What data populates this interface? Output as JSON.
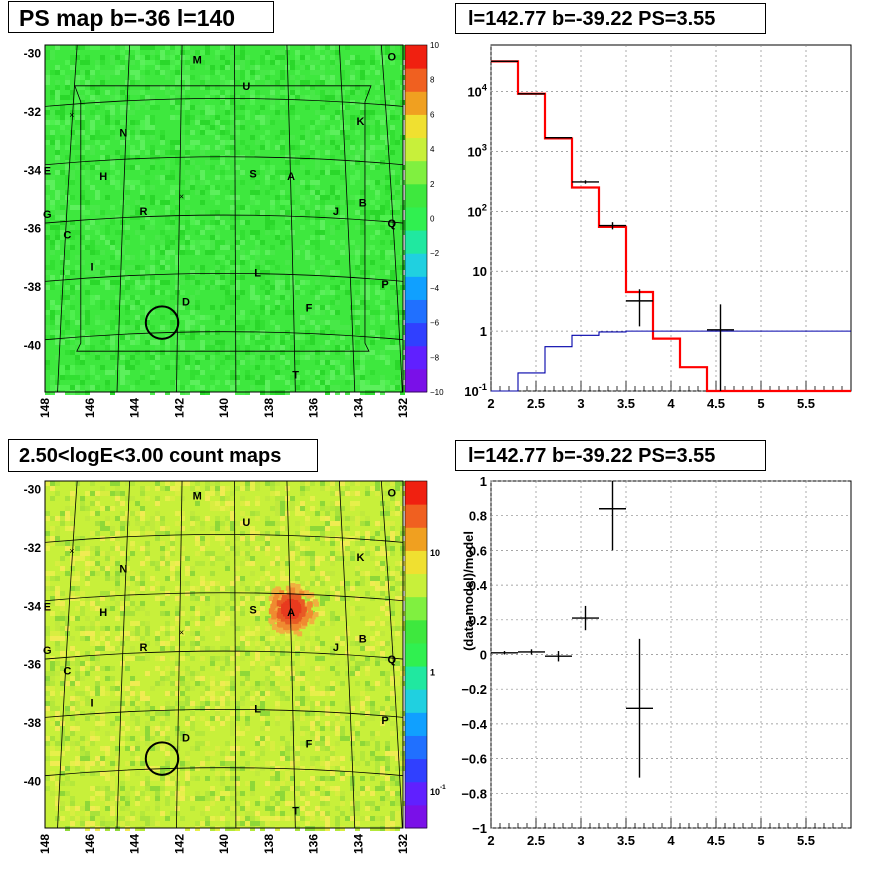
{
  "panels": {
    "ps_map_title": "PS map b=-36 l=140",
    "spectrum_title": "l=142.77 b=-39.22 PS=3.55",
    "count_map_title": "2.50<logE<3.00 count maps",
    "residual_title": "l=142.77 b=-39.22 PS=3.55"
  },
  "colors": {
    "ps_map_background": "#3ee83e",
    "count_map_background": "#c8f03a",
    "hot_spot": "#e83a1e",
    "grid_lines": "#000000",
    "model_red": "#ff0000",
    "model_blue": "#0000aa",
    "data_black": "#000000"
  },
  "chart_data": [
    {
      "type": "heatmap",
      "title": "PS map b=-36 l=140",
      "x_ticks": [
        "148",
        "146",
        "144",
        "142",
        "140",
        "138",
        "136",
        "134",
        "132"
      ],
      "y_ticks": [
        "-30",
        "-32",
        "-34",
        "-36",
        "-38",
        "-40"
      ],
      "xlim": [
        148,
        132
      ],
      "ylim": [
        -41.6,
        -29.7
      ],
      "colorbar_ticks": [
        "10",
        "8",
        "6",
        "4",
        "2",
        "0",
        "−2",
        "−4",
        "−6",
        "−8",
        "−10"
      ],
      "colorbar_range": [
        -10,
        10
      ],
      "source_labels": [
        {
          "text": "M",
          "l": 141.2,
          "b": -30.2
        },
        {
          "text": "U",
          "l": 139.0,
          "b": -31.1
        },
        {
          "text": "O",
          "l": 132.5,
          "b": -30.1
        },
        {
          "text": "K",
          "l": 133.9,
          "b": -32.3
        },
        {
          "text": "N",
          "l": 144.5,
          "b": -32.7
        },
        {
          "text": "E",
          "l": 147.9,
          "b": -34.0
        },
        {
          "text": "H",
          "l": 145.4,
          "b": -34.2
        },
        {
          "text": "S",
          "l": 138.7,
          "b": -34.1
        },
        {
          "text": "A",
          "l": 137.0,
          "b": -34.2
        },
        {
          "text": "B",
          "l": 133.8,
          "b": -35.1
        },
        {
          "text": "G",
          "l": 147.9,
          "b": -35.5
        },
        {
          "text": "R",
          "l": 143.6,
          "b": -35.4
        },
        {
          "text": "J",
          "l": 135.0,
          "b": -35.4
        },
        {
          "text": "Q",
          "l": 132.5,
          "b": -35.8
        },
        {
          "text": "C",
          "l": 147.0,
          "b": -36.2
        },
        {
          "text": "I",
          "l": 145.9,
          "b": -37.3
        },
        {
          "text": "L",
          "l": 138.5,
          "b": -37.5
        },
        {
          "text": "P",
          "l": 132.8,
          "b": -37.9
        },
        {
          "text": "D",
          "l": 141.7,
          "b": -38.5
        },
        {
          "text": "F",
          "l": 136.2,
          "b": -38.7
        },
        {
          "text": "T",
          "l": 136.8,
          "b": -41.0
        }
      ],
      "circle": {
        "l": 142.77,
        "b": -39.22,
        "radius_deg": 0.5
      },
      "cross_markers": [
        {
          "l": 146.8,
          "b": -32.1
        },
        {
          "l": 141.9,
          "b": -34.9
        }
      ]
    },
    {
      "type": "line",
      "title": "l=142.77 b=-39.22 PS=3.55",
      "log_y": true,
      "xlim": [
        2,
        6
      ],
      "ylim": [
        0.1,
        60000
      ],
      "x_ticks": [
        "2",
        "2.5",
        "3",
        "3.5",
        "4",
        "4.5",
        "5",
        "5.5"
      ],
      "y_ticks": [
        "10^-1",
        "1",
        "10",
        "10^2",
        "10^3",
        "10^4"
      ],
      "grid": true,
      "series": [
        {
          "color": "red",
          "style": "step",
          "edges": [
            2.0,
            2.3,
            2.6,
            2.9,
            3.2,
            3.5,
            3.8,
            4.1,
            4.4,
            4.7,
            5.0,
            5.3,
            6.0
          ],
          "values": [
            32000,
            9200,
            1650,
            250,
            55,
            4.5,
            0.75,
            0.25,
            0.09,
            0.09,
            0.09,
            0.09
          ]
        },
        {
          "color": "blue",
          "style": "step",
          "edges": [
            2.0,
            2.3,
            2.6,
            2.9,
            3.2,
            3.5,
            3.8,
            4.1,
            4.4,
            4.7,
            5.0,
            5.3,
            6.0
          ],
          "values": [
            0.09,
            0.2,
            0.55,
            0.85,
            0.97,
            1.0,
            1.0,
            1.0,
            1.0,
            1.0,
            1.0,
            1.0
          ]
        },
        {
          "color": "black",
          "style": "errorbars",
          "points": [
            {
              "x": 2.15,
              "xerr": 0.15,
              "y": 32000,
              "ylo": 31600,
              "yhi": 32400
            },
            {
              "x": 2.45,
              "xerr": 0.15,
              "y": 9200,
              "ylo": 9000,
              "yhi": 9400
            },
            {
              "x": 2.75,
              "xerr": 0.15,
              "y": 1700,
              "ylo": 1660,
              "yhi": 1740
            },
            {
              "x": 3.05,
              "xerr": 0.15,
              "y": 310,
              "ylo": 290,
              "yhi": 330
            },
            {
              "x": 3.35,
              "xerr": 0.15,
              "y": 58,
              "ylo": 50,
              "yhi": 66
            },
            {
              "x": 3.65,
              "xerr": 0.15,
              "y": 3.2,
              "ylo": 1.2,
              "yhi": 5.0
            },
            {
              "x": 4.55,
              "xerr": 0.15,
              "y": 1.05,
              "ylo": 0.1,
              "yhi": 2.8
            }
          ]
        }
      ]
    },
    {
      "type": "heatmap",
      "title": "2.50<logE<3.00 count maps",
      "x_ticks": [
        "148",
        "146",
        "144",
        "142",
        "140",
        "138",
        "136",
        "134",
        "132"
      ],
      "y_ticks": [
        "-30",
        "-32",
        "-34",
        "-36",
        "-38",
        "-40"
      ],
      "xlim": [
        148,
        132
      ],
      "ylim": [
        -41.6,
        -29.7
      ],
      "log_colorbar": true,
      "colorbar_ticks": [
        "10",
        "1",
        "10^-1"
      ],
      "colorbar_range": [
        0.05,
        40
      ],
      "hot_spot": {
        "l": 137.0,
        "b": -34.1
      },
      "source_labels": [
        {
          "text": "M",
          "l": 141.2,
          "b": -30.2
        },
        {
          "text": "U",
          "l": 139.0,
          "b": -31.1
        },
        {
          "text": "O",
          "l": 132.5,
          "b": -30.1
        },
        {
          "text": "K",
          "l": 133.9,
          "b": -32.3
        },
        {
          "text": "N",
          "l": 144.5,
          "b": -32.7
        },
        {
          "text": "E",
          "l": 147.9,
          "b": -34.0
        },
        {
          "text": "H",
          "l": 145.4,
          "b": -34.2
        },
        {
          "text": "S",
          "l": 138.7,
          "b": -34.1
        },
        {
          "text": "A",
          "l": 137.0,
          "b": -34.2
        },
        {
          "text": "B",
          "l": 133.8,
          "b": -35.1
        },
        {
          "text": "G",
          "l": 147.9,
          "b": -35.5
        },
        {
          "text": "R",
          "l": 143.6,
          "b": -35.4
        },
        {
          "text": "J",
          "l": 135.0,
          "b": -35.4
        },
        {
          "text": "Q",
          "l": 132.5,
          "b": -35.8
        },
        {
          "text": "C",
          "l": 147.0,
          "b": -36.2
        },
        {
          "text": "I",
          "l": 145.9,
          "b": -37.3
        },
        {
          "text": "L",
          "l": 138.5,
          "b": -37.5
        },
        {
          "text": "P",
          "l": 132.8,
          "b": -37.9
        },
        {
          "text": "D",
          "l": 141.7,
          "b": -38.5
        },
        {
          "text": "F",
          "l": 136.2,
          "b": -38.7
        },
        {
          "text": "T",
          "l": 136.8,
          "b": -41.0
        }
      ],
      "circle": {
        "l": 142.77,
        "b": -39.22,
        "radius_deg": 0.5
      },
      "cross_markers": [
        {
          "l": 146.8,
          "b": -32.1
        },
        {
          "l": 141.9,
          "b": -34.9
        }
      ]
    },
    {
      "type": "scatter",
      "title": "l=142.77 b=-39.22 PS=3.55",
      "ylabel": "(data-model)/model",
      "xlim": [
        2,
        6
      ],
      "ylim": [
        -1,
        1
      ],
      "x_ticks": [
        "2",
        "2.5",
        "3",
        "3.5",
        "4",
        "4.5",
        "5",
        "5.5"
      ],
      "y_ticks": [
        "−1",
        "−0.8",
        "−0.6",
        "−0.4",
        "−0.2",
        "0",
        "0.2",
        "0.4",
        "0.6",
        "0.8",
        "1"
      ],
      "grid": true,
      "points": [
        {
          "x": 2.15,
          "xerr": 0.15,
          "y": 0.01,
          "ylo": 0.0,
          "yhi": 0.02
        },
        {
          "x": 2.45,
          "xerr": 0.15,
          "y": 0.015,
          "ylo": 0.0,
          "yhi": 0.03
        },
        {
          "x": 2.75,
          "xerr": 0.15,
          "y": -0.01,
          "ylo": -0.04,
          "yhi": 0.02
        },
        {
          "x": 3.05,
          "xerr": 0.15,
          "y": 0.21,
          "ylo": 0.14,
          "yhi": 0.28
        },
        {
          "x": 3.35,
          "xerr": 0.15,
          "y": 0.84,
          "ylo": 0.6,
          "yhi": 1.0
        },
        {
          "x": 3.65,
          "xerr": 0.15,
          "y": -0.31,
          "ylo": -0.71,
          "yhi": 0.09
        }
      ]
    }
  ]
}
